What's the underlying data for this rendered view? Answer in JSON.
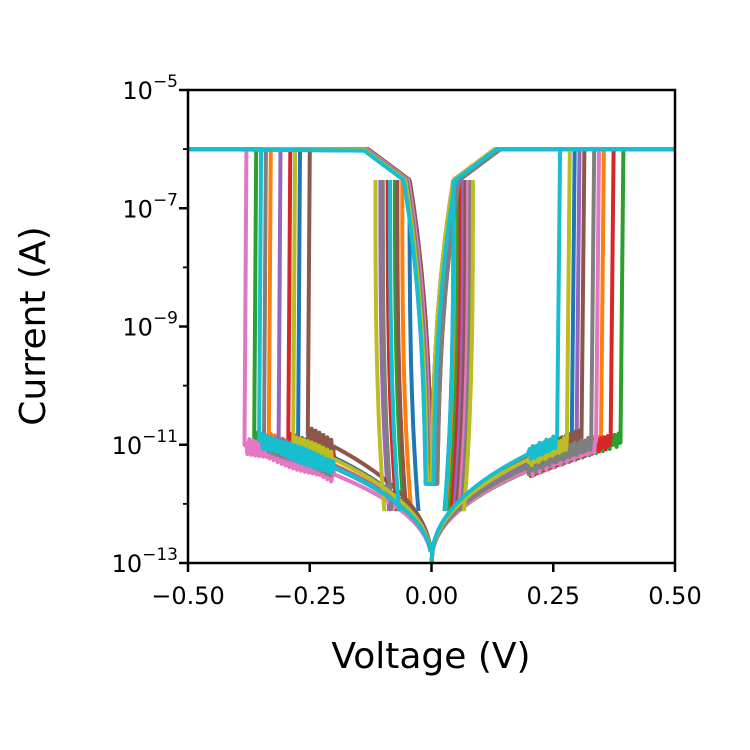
{
  "chart_data": {
    "type": "line",
    "title": "",
    "xlabel": "Voltage (V)",
    "ylabel": "Current (A)",
    "xlim": [
      -0.5,
      0.5
    ],
    "ylim": [
      1e-13,
      1e-05
    ],
    "yscale": "log",
    "grid": false,
    "legend": "none",
    "x_ticks": [
      {
        "value": -0.5,
        "label": "−0.50"
      },
      {
        "value": -0.25,
        "label": "−0.25"
      },
      {
        "value": 0.0,
        "label": "0.00"
      },
      {
        "value": 0.25,
        "label": "0.25"
      },
      {
        "value": 0.5,
        "label": "0.50"
      }
    ],
    "y_ticks": [
      {
        "value": 1e-05,
        "base": "10",
        "exponent": "−5"
      },
      {
        "value": 1e-07,
        "base": "10",
        "exponent": "−7"
      },
      {
        "value": 1e-09,
        "base": "10",
        "exponent": "−9"
      },
      {
        "value": 1e-11,
        "base": "10",
        "exponent": "−11"
      },
      {
        "value": 1e-13,
        "base": "10",
        "exponent": "−13"
      }
    ],
    "compliance_current": 1e-06,
    "series": [
      {
        "color": "#1f77b4",
        "set_voltage": 0.29,
        "reset_voltage": -0.27,
        "off_current_at_switch": 1.1e-11
      },
      {
        "color": "#ff7f0e",
        "set_voltage": 0.35,
        "reset_voltage": -0.33,
        "off_current_at_switch": 1.2e-11
      },
      {
        "color": "#2ca02c",
        "set_voltage": 0.39,
        "reset_voltage": -0.36,
        "off_current_at_switch": 1.3e-11
      },
      {
        "color": "#d62728",
        "set_voltage": 0.37,
        "reset_voltage": -0.29,
        "off_current_at_switch": 1.2e-11
      },
      {
        "color": "#9467bd",
        "set_voltage": 0.3,
        "reset_voltage": -0.31,
        "off_current_at_switch": 1e-11
      },
      {
        "color": "#8c564b",
        "set_voltage": 0.31,
        "reset_voltage": -0.25,
        "off_current_at_switch": 1.5e-11
      },
      {
        "color": "#e377c2",
        "set_voltage": 0.34,
        "reset_voltage": -0.38,
        "off_current_at_switch": 1e-11
      },
      {
        "color": "#7f7f7f",
        "set_voltage": 0.33,
        "reset_voltage": -0.34,
        "off_current_at_switch": 1.1e-11
      },
      {
        "color": "#bcbd22",
        "set_voltage": 0.28,
        "reset_voltage": -0.28,
        "off_current_at_switch": 1.1e-11
      },
      {
        "color": "#17becf",
        "set_voltage": 0.26,
        "reset_voltage": -0.35,
        "off_current_at_switch": 1.2e-11
      }
    ]
  }
}
